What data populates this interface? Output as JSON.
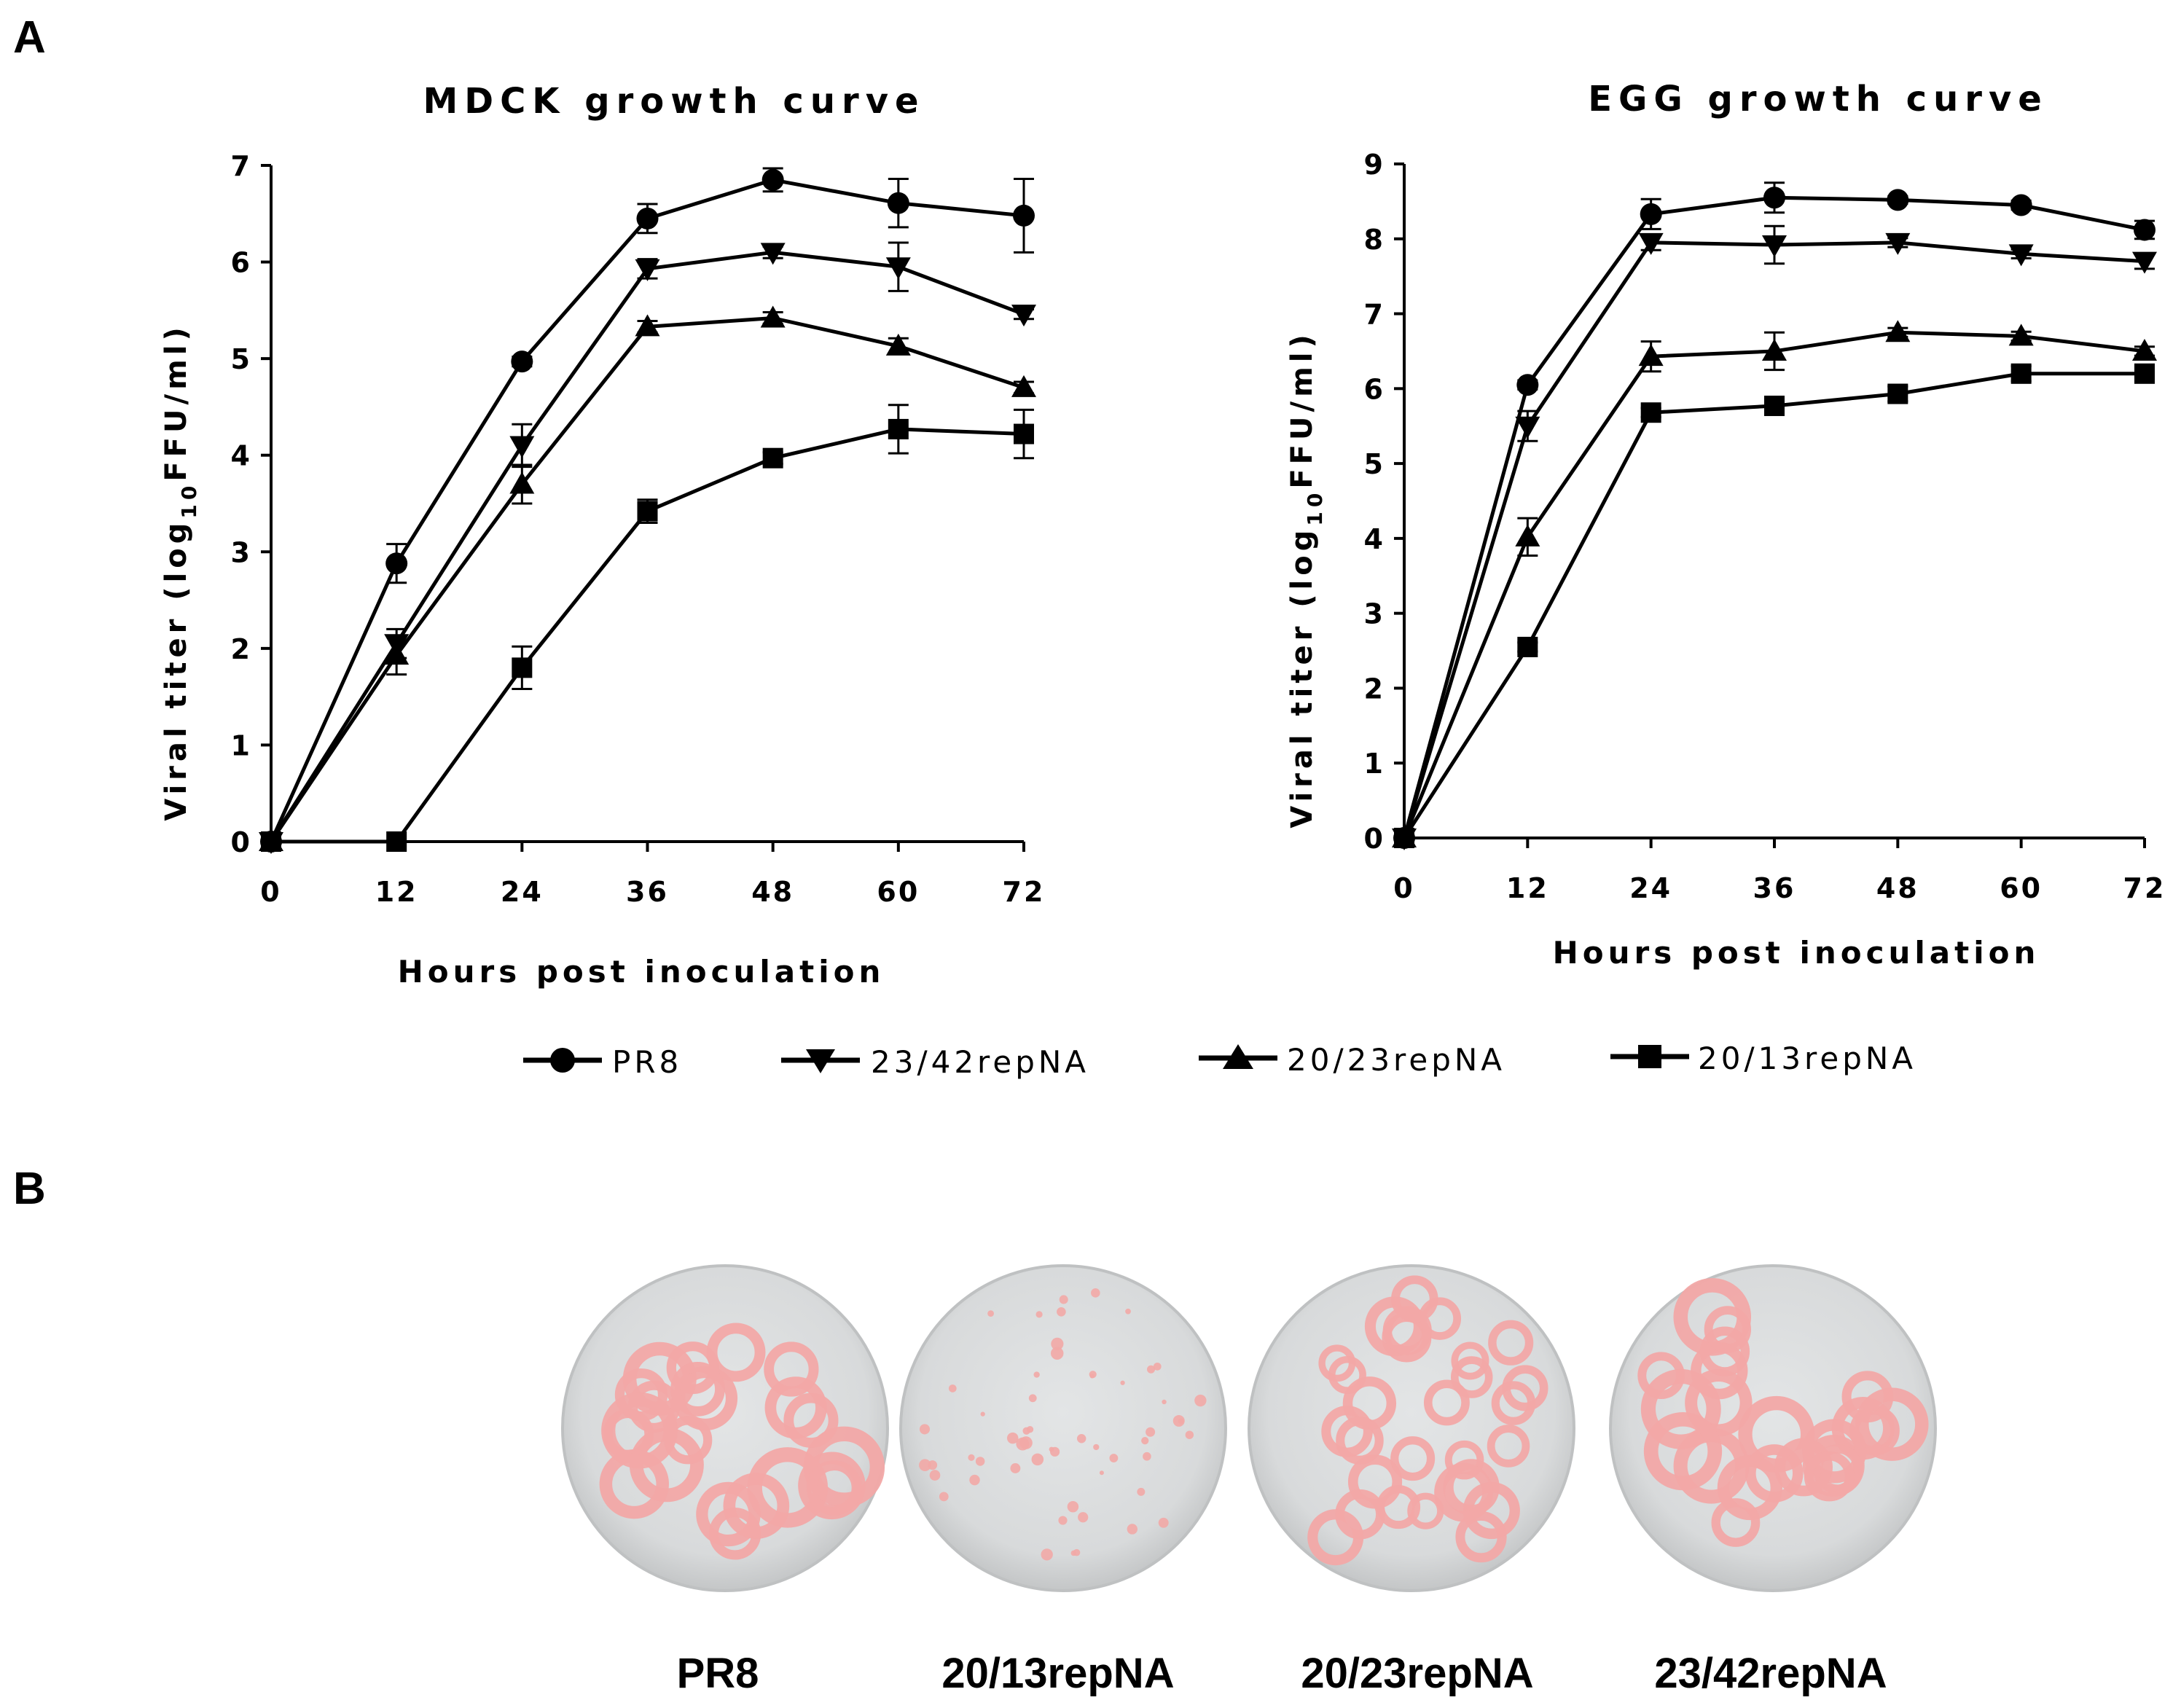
{
  "panel_labels": {
    "a": "A",
    "b": "B"
  },
  "colors": {
    "ink": "#000000",
    "plaque": "#f2a8a6",
    "plate": "#dcdedf",
    "plate_rim": "#c7c9ca"
  },
  "legend": [
    {
      "label": "PR8",
      "marker": "circle"
    },
    {
      "label": "23/42repNA",
      "marker": "triangle-down"
    },
    {
      "label": "20/23repNA",
      "marker": "triangle-up"
    },
    {
      "label": "20/13repNA",
      "marker": "square"
    }
  ],
  "chart_data": [
    {
      "type": "line",
      "title": "MDCK growth curve",
      "xlabel": "Hours post inoculation",
      "ylabel_main": "Viral titer (log",
      "ylabel_sub": "10",
      "ylabel_end": "FFU/ml)",
      "x": [
        0,
        12,
        24,
        36,
        48,
        60,
        72
      ],
      "xticks": [
        "0",
        "12",
        "24",
        "36",
        "48",
        "60",
        "72"
      ],
      "ylim": [
        0,
        7
      ],
      "yticks": [
        "0",
        "1",
        "2",
        "3",
        "4",
        "5",
        "6",
        "7"
      ],
      "series": [
        {
          "name": "PR8",
          "marker": "circle",
          "values": [
            0,
            2.88,
            4.97,
            6.45,
            6.85,
            6.61,
            6.48
          ],
          "err": [
            0,
            0.2,
            0.05,
            0.15,
            0.12,
            0.25,
            0.38
          ]
        },
        {
          "name": "23/42repNA",
          "marker": "triangle-down",
          "values": [
            0,
            2.05,
            4.1,
            5.93,
            6.1,
            5.95,
            5.46
          ],
          "err": [
            0,
            0.15,
            0.22,
            0.1,
            0.06,
            0.25,
            0.05
          ]
        },
        {
          "name": "20/23repNA",
          "marker": "triangle-up",
          "values": [
            0,
            1.93,
            3.7,
            5.33,
            5.42,
            5.13,
            4.7
          ],
          "err": [
            0,
            0.2,
            0.2,
            0.06,
            0.06,
            0.08,
            0.06
          ]
        },
        {
          "name": "20/13repNA",
          "marker": "square",
          "values": [
            0,
            0,
            1.8,
            3.42,
            3.97,
            4.27,
            4.22
          ],
          "err": [
            0,
            0,
            0.22,
            0.12,
            0.06,
            0.25,
            0.25
          ]
        }
      ]
    },
    {
      "type": "line",
      "title": "EGG growth curve",
      "xlabel": "Hours post inoculation",
      "ylabel_main": "Viral titer (log",
      "ylabel_sub": "10",
      "ylabel_end": "FFU/ml)",
      "x": [
        0,
        12,
        24,
        36,
        48,
        60,
        72
      ],
      "xticks": [
        "0",
        "12",
        "24",
        "36",
        "48",
        "60",
        "72"
      ],
      "ylim": [
        0,
        9
      ],
      "yticks": [
        "0",
        "1",
        "2",
        "3",
        "4",
        "5",
        "6",
        "7",
        "8",
        "9"
      ],
      "series": [
        {
          "name": "PR8",
          "marker": "circle",
          "values": [
            0,
            6.05,
            8.33,
            8.55,
            8.52,
            8.45,
            8.12
          ],
          "err": [
            0,
            0.06,
            0.2,
            0.2,
            0.05,
            0.06,
            0.12
          ]
        },
        {
          "name": "23/42repNA",
          "marker": "triangle-down",
          "values": [
            0,
            5.5,
            7.95,
            7.92,
            7.95,
            7.8,
            7.7
          ],
          "err": [
            0,
            0.2,
            0.1,
            0.25,
            0.06,
            0.06,
            0.1
          ]
        },
        {
          "name": "20/23repNA",
          "marker": "triangle-up",
          "values": [
            0,
            4.02,
            6.43,
            6.5,
            6.75,
            6.7,
            6.5
          ],
          "err": [
            0,
            0.25,
            0.2,
            0.25,
            0.06,
            0.06,
            0.06
          ]
        },
        {
          "name": "20/13repNA",
          "marker": "square",
          "values": [
            0,
            2.55,
            5.68,
            5.77,
            5.93,
            6.2,
            6.2
          ],
          "err": [
            0,
            0.06,
            0.06,
            0.06,
            0.1,
            0.1,
            0.1
          ]
        }
      ]
    }
  ],
  "dishes": [
    {
      "label": "PR8",
      "plaque_size": "large"
    },
    {
      "label": "20/13repNA",
      "plaque_size": "small"
    },
    {
      "label": "20/23repNA",
      "plaque_size": "medium"
    },
    {
      "label": "23/42repNA",
      "plaque_size": "large"
    }
  ]
}
